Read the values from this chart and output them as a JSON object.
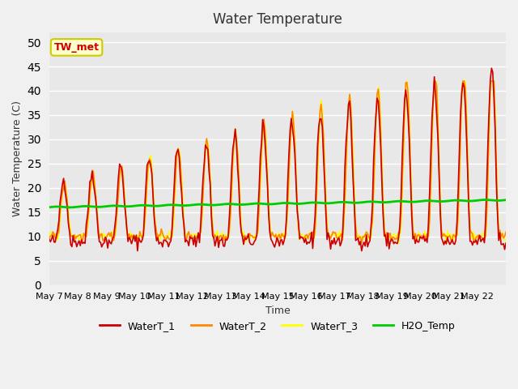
{
  "title": "Water Temperature",
  "xlabel": "Time",
  "ylabel": "Water Temperature (C)",
  "ylim": [
    0,
    52
  ],
  "yticks": [
    0,
    5,
    10,
    15,
    20,
    25,
    30,
    35,
    40,
    45,
    50
  ],
  "x_labels": [
    "May 7",
    "May 8",
    "May 9",
    "May 10",
    "May 11",
    "May 12",
    "May 13",
    "May 14",
    "May 15",
    "May 16",
    "May 17",
    "May 18",
    "May 19",
    "May 20",
    "May 21",
    "May 22"
  ],
  "annotation_text": "TW_met",
  "annotation_color": "#cc0000",
  "annotation_bg": "#ffffcc",
  "annotation_border": "#cccc00",
  "colors": {
    "WaterT_1": "#cc0000",
    "WaterT_2": "#ff8800",
    "WaterT_3": "#ffff00",
    "H2O_Temp": "#00cc00"
  },
  "bg_color": "#e8e8e8",
  "grid_color": "#ffffff",
  "linewidths": {
    "WaterT_1": 1.2,
    "WaterT_2": 1.2,
    "WaterT_3": 1.2,
    "H2O_Temp": 2.0
  }
}
